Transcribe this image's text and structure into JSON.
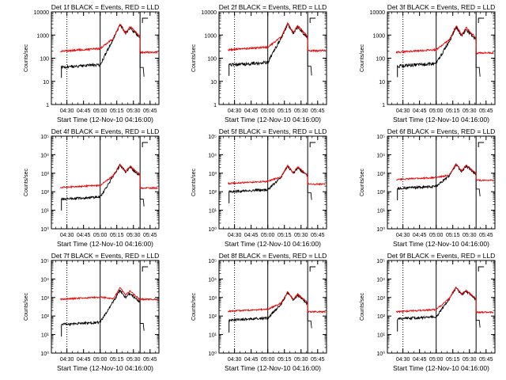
{
  "chart_data": [
    {
      "type": "line",
      "title": "Det 1f BLACK = Events, RED = LLD",
      "scale": "old",
      "ylabel": "Counts/sec",
      "xlabel": "Start Time (12-Nov-10 04:16:00)",
      "ylim": [
        1,
        10000
      ],
      "yscale": "log",
      "yticks": [
        "1",
        "10",
        "100",
        "1000",
        "10000"
      ],
      "xticks": [
        "04:30",
        "04:45",
        "05:00",
        "05:15",
        "05:30",
        "05:45"
      ],
      "dotted_line": "04:30",
      "solid_lines": [
        "05:00",
        "05:36"
      ],
      "events_base": 40,
      "lld_base": 200,
      "peak1": 2900,
      "peak2": 2100,
      "lld_peak1": 2900,
      "lld_peak2": 2400,
      "events_after": 40,
      "lld_after": 180,
      "series": [
        {
          "color": "#000000"
        },
        {
          "color": "#ee0000"
        }
      ]
    },
    {
      "type": "line",
      "title": "Det 2f BLACK = Events, RED = LLD",
      "scale": "old",
      "ylabel": "Counts/sec",
      "xlabel": "Start Time (12-Nov-10 04:16:00)",
      "ylim": [
        1,
        10000
      ],
      "yscale": "log",
      "yticks": [
        "1",
        "10",
        "100",
        "1000",
        "10000"
      ],
      "xticks": [
        "04:30",
        "04:45",
        "05:00",
        "05:15",
        "05:30",
        "05:45"
      ],
      "dotted_line": "04:30",
      "solid_lines": [
        "05:00",
        "05:36"
      ],
      "events_base": 50,
      "lld_base": 230,
      "peak1": 3000,
      "peak2": 2200,
      "lld_peak1": 3200,
      "lld_peak2": 2500,
      "events_after": 45,
      "lld_after": 210,
      "series": [
        {
          "color": "#000000"
        },
        {
          "color": "#ee0000"
        }
      ]
    },
    {
      "type": "line",
      "title": "Det 3f BLACK = Events, RED = LLD",
      "scale": "old",
      "ylabel": "Counts/sec",
      "xlabel": "Start Time (12-Nov-10 04:16:00)",
      "ylim": [
        1,
        10000
      ],
      "yscale": "log",
      "yticks": [
        "1",
        "10",
        "100",
        "1000",
        "10000"
      ],
      "xticks": [
        "04:30",
        "04:45",
        "05:00",
        "05:15",
        "05:30",
        "05:45"
      ],
      "dotted_line": "04:30",
      "solid_lines": [
        "05:00",
        "05:36"
      ],
      "events_base": 45,
      "lld_base": 180,
      "peak1": 2300,
      "peak2": 1800,
      "lld_peak1": 2500,
      "lld_peak2": 2100,
      "events_after": 40,
      "lld_after": 170,
      "series": [
        {
          "color": "#000000"
        },
        {
          "color": "#ee0000"
        }
      ]
    },
    {
      "type": "line",
      "title": "Det 4f BLACK = Events, RED = LLD",
      "scale": "new",
      "ylabel": "Counts/sec",
      "xlabel": "Start Time (12-Nov-10 04:16:00)",
      "ylim": [
        1,
        100000
      ],
      "yscale": "log",
      "yticks": [
        "10⁰",
        "10¹",
        "10²",
        "10³",
        "10⁴",
        "10⁵"
      ],
      "xticks": [
        "04:30",
        "04:45",
        "05:00",
        "05:15",
        "05:30",
        "05:45"
      ],
      "dotted_line": "04:30",
      "solid_lines": [
        "05:00",
        "05:36"
      ],
      "events_base": 40,
      "lld_base": 170,
      "peak1": 2900,
      "peak2": 2100,
      "lld_peak1": 3000,
      "lld_peak2": 2400,
      "events_after": 40,
      "lld_after": 160,
      "series": [
        {
          "color": "#000000"
        },
        {
          "color": "#ee0000"
        }
      ]
    },
    {
      "type": "line",
      "title": "Det 5f BLACK = Events, RED = LLD",
      "scale": "new",
      "ylabel": "Counts/sec",
      "xlabel": "Start Time (12-Nov-10 04:16:00)",
      "ylim": [
        1,
        100000
      ],
      "yscale": "log",
      "yticks": [
        "10⁰",
        "10¹",
        "10²",
        "10³",
        "10⁴",
        "10⁵"
      ],
      "xticks": [
        "04:30",
        "04:45",
        "05:00",
        "05:15",
        "05:30",
        "05:45"
      ],
      "dotted_line": "04:30",
      "solid_lines": [
        "05:00",
        "05:36"
      ],
      "events_base": 100,
      "lld_base": 280,
      "peak1": 2400,
      "peak2": 2000,
      "lld_peak1": 2600,
      "lld_peak2": 2200,
      "events_after": 90,
      "lld_after": 260,
      "series": [
        {
          "color": "#000000"
        },
        {
          "color": "#ee0000"
        }
      ]
    },
    {
      "type": "line",
      "title": "Det 6f BLACK = Events, RED = LLD",
      "scale": "new",
      "ylabel": "Counts/sec",
      "xlabel": "Start Time (12-Nov-10 04:16:00)",
      "ylim": [
        1,
        100000
      ],
      "yscale": "log",
      "yticks": [
        "10⁰",
        "10¹",
        "10²",
        "10³",
        "10⁴",
        "10⁵"
      ],
      "xticks": [
        "04:30",
        "04:45",
        "05:00",
        "05:15",
        "05:30",
        "05:45"
      ],
      "dotted_line": "04:30",
      "solid_lines": [
        "05:00",
        "05:36"
      ],
      "events_base": 150,
      "lld_base": 450,
      "peak1": 3000,
      "peak2": 2500,
      "lld_peak1": 3200,
      "lld_peak2": 2800,
      "events_after": 140,
      "lld_after": 420,
      "series": [
        {
          "color": "#000000"
        },
        {
          "color": "#ee0000"
        }
      ]
    },
    {
      "type": "line",
      "title": "Det 7f BLACK = Events, RED = LLD",
      "scale": "new",
      "ylabel": "Counts/sec",
      "xlabel": "Start Time (12-Nov-10 04:16:00)",
      "ylim": [
        1,
        100000
      ],
      "yscale": "log",
      "yticks": [
        "10⁰",
        "10¹",
        "10²",
        "10³",
        "10⁴",
        "10⁵"
      ],
      "xticks": [
        "04:30",
        "04:45",
        "05:00",
        "05:15",
        "05:30",
        "05:45"
      ],
      "dotted_line": "04:30",
      "solid_lines": [
        "05:00",
        "05:36"
      ],
      "events_base": 35,
      "lld_base": 800,
      "peak1": 2500,
      "peak2": 1600,
      "lld_peak1": 3500,
      "lld_peak2": 2200,
      "events_after": 40,
      "lld_after": 800,
      "series": [
        {
          "color": "#000000"
        },
        {
          "color": "#ee0000"
        }
      ]
    },
    {
      "type": "line",
      "title": "Det 8f BLACK = Events, RED = LLD",
      "scale": "new",
      "ylabel": "Counts/sec",
      "xlabel": "Start Time (12-Nov-10 04:16:00)",
      "ylim": [
        1,
        100000
      ],
      "yscale": "log",
      "yticks": [
        "10⁰",
        "10¹",
        "10²",
        "10³",
        "10⁴",
        "10⁵"
      ],
      "xticks": [
        "04:30",
        "04:45",
        "05:00",
        "05:15",
        "05:30",
        "05:45"
      ],
      "dotted_line": "04:30",
      "solid_lines": [
        "05:00",
        "05:36"
      ],
      "events_base": 60,
      "lld_base": 180,
      "peak1": 1800,
      "peak2": 1300,
      "lld_peak1": 2000,
      "lld_peak2": 1500,
      "events_after": 55,
      "lld_after": 170,
      "series": [
        {
          "color": "#000000"
        },
        {
          "color": "#ee0000"
        }
      ]
    },
    {
      "type": "line",
      "title": "Det 9f BLACK = Events, RED = LLD",
      "scale": "new",
      "ylabel": "Counts/sec",
      "xlabel": "Start Time (12-Nov-10 04:16:00)",
      "ylim": [
        1,
        100000
      ],
      "yscale": "log",
      "yticks": [
        "10⁰",
        "10¹",
        "10²",
        "10³",
        "10⁴",
        "10⁵"
      ],
      "xticks": [
        "04:30",
        "04:45",
        "05:00",
        "05:15",
        "05:30",
        "05:45"
      ],
      "dotted_line": "04:30",
      "solid_lines": [
        "05:00",
        "05:36"
      ],
      "events_base": 70,
      "lld_base": 170,
      "peak1": 3500,
      "peak2": 2200,
      "lld_peak1": 3700,
      "lld_peak2": 2400,
      "events_after": 60,
      "lld_after": 160,
      "series": [
        {
          "color": "#000000"
        },
        {
          "color": "#ee0000"
        }
      ]
    }
  ]
}
